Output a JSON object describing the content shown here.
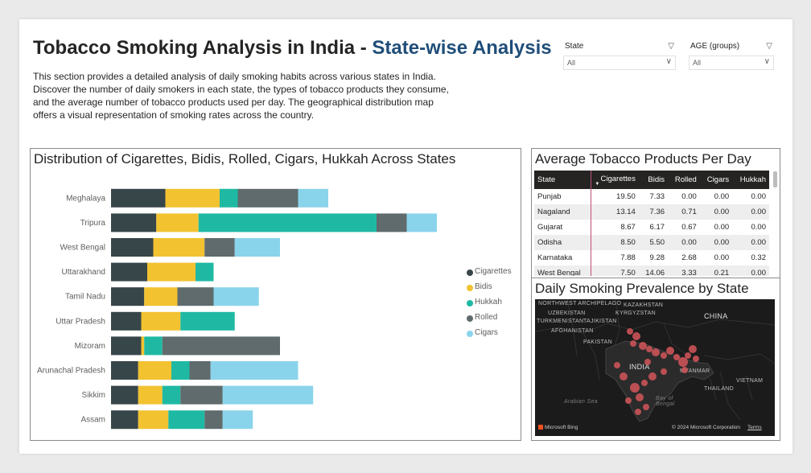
{
  "header": {
    "title_main": "Tobacco Smoking Analysis in India - ",
    "title_accent": "State-wise Analysis",
    "description": "This section provides a detailed analysis of daily smoking habits across various states in India. Discover the number of daily smokers in each state, the types of tobacco products they consume, and the average number of tobacco products used per day. The geographical distribution map offers a visual representation of smoking rates across the country."
  },
  "slicers": [
    {
      "label": "State",
      "value": "All"
    },
    {
      "label": "AGE (groups)",
      "value": "All"
    }
  ],
  "icons": {
    "dropdown": "chevron-down-icon",
    "sort": "sort-descending-icon",
    "logo": "microsoft-bing-logo"
  },
  "colors": {
    "Cigarettes": "#374649",
    "Bidis": "#f2c231",
    "Hukkah": "#1fb9a3",
    "Rolled": "#5f6b6d",
    "Cigars": "#8ad4eb"
  },
  "chart_data": {
    "type": "bar",
    "orientation": "horizontal",
    "stacked": true,
    "title": "Distribution of Cigarettes, Bidis, Rolled, Cigars, Hukkah Across States",
    "legend_position": "right",
    "categories": [
      "Meghalaya",
      "Tripura",
      "West Bengal",
      "Uttarakhand",
      "Tamil Nadu",
      "Uttar Pradesh",
      "Mizoram",
      "Arunachal Pradesh",
      "Sikkim",
      "Assam"
    ],
    "series": [
      {
        "name": "Cigarettes",
        "values": [
          18,
          15,
          14,
          12,
          11,
          10,
          10,
          9,
          9,
          9
        ]
      },
      {
        "name": "Bidis",
        "values": [
          18,
          14,
          17,
          16,
          11,
          13,
          1,
          11,
          8,
          10
        ]
      },
      {
        "name": "Hukkah",
        "values": [
          6,
          59,
          0,
          6,
          0,
          18,
          6,
          6,
          6,
          12
        ]
      },
      {
        "name": "Rolled",
        "values": [
          20,
          10,
          10,
          0,
          12,
          0,
          39,
          7,
          14,
          6
        ]
      },
      {
        "name": "Cigars",
        "values": [
          10,
          10,
          15,
          0,
          15,
          0,
          0,
          29,
          30,
          10
        ]
      }
    ]
  },
  "table": {
    "title": "Average Tobacco Products Per Day",
    "columns": [
      "State",
      "Cigarettes",
      "Bidis",
      "Rolled",
      "Cigars",
      "Hukkah"
    ],
    "rows": [
      [
        "Punjab",
        "19.50",
        "7.33",
        "0.00",
        "0.00",
        "0.00"
      ],
      [
        "Nagaland",
        "13.14",
        "7.36",
        "0.71",
        "0.00",
        "0.00"
      ],
      [
        "Gujarat",
        "8.67",
        "6.17",
        "0.67",
        "0.00",
        "0.00"
      ],
      [
        "Odisha",
        "8.50",
        "5.50",
        "0.00",
        "0.00",
        "0.00"
      ],
      [
        "Karnataka",
        "7.88",
        "9.28",
        "2.68",
        "0.00",
        "0.32"
      ],
      [
        "West Bengal",
        "7.50",
        "14.06",
        "3.33",
        "0.21",
        "0.00"
      ]
    ]
  },
  "map": {
    "title": "Daily Smoking Prevalence by State",
    "labels": [
      "NORTHWEST ARCHIPELAGO",
      "KAZAKHSTAN",
      "UZBEKISTAN",
      "KYRGYZSTAN",
      "TAJIKISTAN",
      "TURKMENISTAN",
      "AFGHANISTAN",
      "CHINA",
      "PAKISTAN",
      "INDIA",
      "MYANMAR",
      "THAILAND",
      "VIETNAM",
      "Arabian Sea",
      "Bay of Bengal"
    ],
    "attribution": "© 2024 Microsoft Corporation",
    "terms": "Terms",
    "brand": "Microsoft Bing"
  }
}
